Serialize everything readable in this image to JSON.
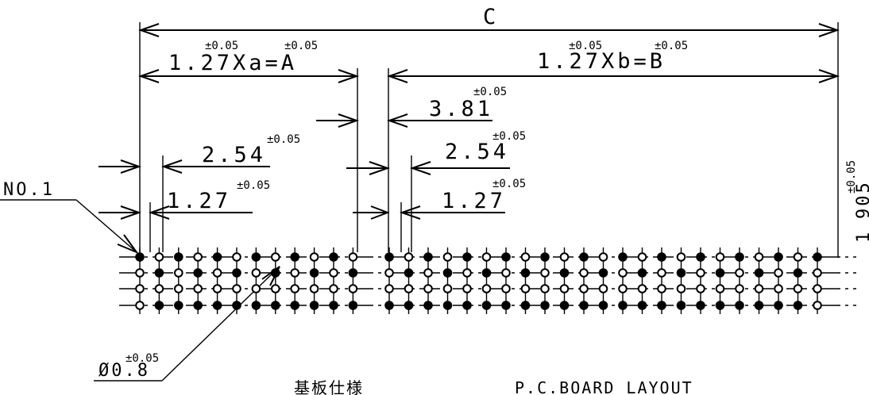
{
  "dimensions": {
    "overall": "C",
    "pitch_a": "1.27Xa=A",
    "pitch_b": "1.27Xb=B",
    "gap": "3.81",
    "left_row_pitch": "2.54",
    "right_row_pitch": "2.54",
    "left_pin_pitch": "1.27",
    "right_pin_pitch": "1.27",
    "hole_diameter": "Ø0.8",
    "row_spacing_partial": "1",
    "side_partial": "905"
  },
  "tolerances": {
    "a_value": "±0.05",
    "a_label": "±0.05",
    "b_value": "±0.05",
    "b_label": "±0.05",
    "gap": "±0.05",
    "left_row_pitch": "±0.05",
    "right_row_pitch": "±0.05",
    "left_pin_pitch": "±0.05",
    "right_pin_pitch": "±0.05",
    "hole": "±0.05",
    "side": "±0.05"
  },
  "labels": {
    "pin_one": "NO.1",
    "title_jp": "基板仕様",
    "title_en": "P.C.BOARD LAYOUT"
  },
  "rows": {
    "left_count": 12,
    "right_count": 23,
    "fill_patterns": [
      [
        1,
        0,
        1,
        0,
        1,
        0,
        1,
        0,
        1,
        0,
        1,
        0,
        1,
        0,
        1,
        0,
        1,
        0,
        1,
        0,
        1,
        0,
        1,
        0,
        1,
        0,
        1,
        0,
        1,
        0,
        1,
        0,
        1,
        0,
        1
      ],
      [
        0,
        1,
        0,
        1,
        0,
        1,
        0,
        1,
        0,
        1,
        0,
        1,
        0,
        1,
        0,
        1,
        0,
        1,
        0,
        1,
        0,
        1,
        0,
        1,
        0,
        1,
        0,
        1,
        0,
        1,
        0,
        1,
        0,
        1,
        0
      ],
      [
        0,
        0,
        0,
        0,
        0,
        0,
        0,
        0,
        0,
        0,
        0,
        0,
        0,
        0,
        0,
        0,
        0,
        0,
        0,
        0,
        0,
        0,
        0,
        0,
        0,
        0,
        0,
        0,
        0,
        0,
        0,
        0,
        0,
        0,
        0
      ],
      [
        0,
        1,
        1,
        1,
        1,
        1,
        1,
        1,
        1,
        1,
        1,
        1,
        1,
        1,
        1,
        1,
        1,
        1,
        1,
        1,
        1,
        1,
        1,
        1,
        1,
        1,
        1,
        1,
        1,
        1,
        1,
        1,
        1,
        1,
        0
      ]
    ]
  }
}
